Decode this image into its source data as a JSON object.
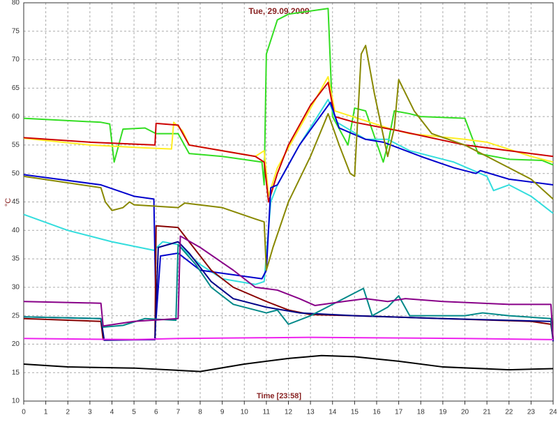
{
  "chart_data": {
    "type": "line",
    "title": "Tue, 29.09.2009",
    "ylabel": "°C",
    "xlabel": "Time [23:58]",
    "xlim": [
      0,
      24
    ],
    "xticks": [
      0,
      1,
      2,
      3,
      4,
      5,
      6,
      7,
      8,
      9,
      10,
      11,
      12,
      13,
      14,
      15,
      16,
      17,
      18,
      19,
      20,
      21,
      22,
      23,
      24
    ],
    "ylim": [
      10,
      80
    ],
    "yticks": [
      10,
      15,
      20,
      25,
      30,
      35,
      40,
      45,
      50,
      55,
      60,
      65,
      70,
      75,
      80
    ],
    "grid": true,
    "series": [
      {
        "color": "#33dd22",
        "x": [
          0,
          3.5,
          3.9,
          4.1,
          4.5,
          5.5,
          6,
          7,
          7.5,
          9,
          10.8,
          10.9,
          11.0,
          11.5,
          12,
          13.8,
          14,
          14.7,
          15,
          15.5,
          16.3,
          16.5,
          16.8,
          17.5,
          18,
          20,
          20.6,
          22,
          23.5,
          24
        ],
        "values": [
          59.7,
          59,
          58.7,
          52,
          57.8,
          58,
          57,
          57,
          53.5,
          53,
          52,
          48,
          71,
          77,
          78,
          79,
          60,
          55,
          61.5,
          61,
          52,
          55,
          61,
          60.5,
          60,
          59.7,
          53.5,
          52.5,
          52.3,
          51.5
        ]
      },
      {
        "color": "#ffee22",
        "x": [
          0,
          3,
          5.5,
          6.7,
          6.8,
          7.2,
          7.5,
          10.5,
          10.9,
          11.1,
          11.5,
          13.8,
          14.1,
          16.5,
          17.5,
          20,
          21,
          23,
          24
        ],
        "values": [
          56.2,
          55,
          54.5,
          54.3,
          59,
          57.5,
          55,
          53,
          54,
          46,
          51,
          67,
          61,
          58,
          57,
          56,
          55.5,
          53,
          52
        ]
      },
      {
        "color": "#cc0000",
        "x": [
          0,
          3,
          5.95,
          6.0,
          7,
          7.5,
          9,
          10.5,
          10.9,
          11.1,
          11.5,
          12,
          13,
          13.8,
          14.1,
          15,
          17,
          20,
          23,
          24
        ],
        "values": [
          56.3,
          55.5,
          55,
          58.8,
          58.5,
          55,
          54,
          53,
          52,
          45,
          50,
          55,
          62,
          66,
          60,
          59,
          57.5,
          55,
          53.5,
          53
        ]
      },
      {
        "color": "#33dddd",
        "x": [
          0,
          2,
          4,
          5.9,
          6.3,
          7,
          8,
          9,
          10.5,
          10.9,
          11.2,
          11.5,
          12.5,
          13.8,
          14.2,
          15.5,
          16.5,
          17.5,
          19.5,
          21,
          21.3,
          22,
          23,
          24
        ],
        "values": [
          42.8,
          40,
          38,
          36.5,
          38,
          37.5,
          34,
          31.5,
          30.5,
          31,
          45,
          48,
          55,
          63,
          59,
          56,
          56,
          54,
          52,
          49.5,
          47,
          48,
          46,
          43
        ]
      },
      {
        "color": "#0000cc",
        "x": [
          0,
          3.5,
          5,
          5.9,
          6.0,
          6.2,
          7,
          8,
          10.8,
          11,
          11.2,
          11.5,
          12.5,
          13.9,
          14.3,
          15.5,
          16.3,
          18,
          19.5,
          20.5,
          20.7,
          22,
          24
        ],
        "values": [
          49.8,
          48,
          46,
          45.5,
          24.5,
          35.5,
          36,
          33,
          31.5,
          33,
          47.5,
          48,
          55,
          62.5,
          58,
          56,
          55.5,
          53,
          51,
          50,
          50.5,
          49,
          48
        ]
      },
      {
        "color": "#888800",
        "x": [
          0,
          3.5,
          3.7,
          4,
          4.5,
          4.8,
          5,
          7,
          7.3,
          9,
          10.5,
          10.9,
          11.0,
          11.3,
          12,
          13,
          13.8,
          14.3,
          14.8,
          15,
          15.3,
          15.5,
          15.9,
          16.5,
          16.8,
          17,
          17.7,
          18.5,
          20,
          21.5,
          23,
          24
        ],
        "values": [
          49.5,
          47.5,
          45,
          43.5,
          44,
          45,
          44.5,
          44,
          44.8,
          44,
          42,
          41.5,
          33,
          37,
          45,
          53,
          60.5,
          55,
          50,
          49.5,
          71,
          72.5,
          64,
          53,
          58,
          66.5,
          61,
          57,
          55,
          52,
          49,
          45.5
        ]
      },
      {
        "color": "#880000",
        "x": [
          0,
          3.5,
          3.6,
          5.95,
          6.0,
          7,
          7.5,
          8.5,
          9.5,
          11,
          12,
          13,
          15,
          19,
          23,
          23.9,
          24
        ],
        "values": [
          24.5,
          24,
          20.8,
          20.8,
          40.8,
          40.5,
          38,
          33,
          30,
          27.5,
          26,
          25.2,
          25,
          24.5,
          24,
          23.5,
          20.8
        ]
      },
      {
        "color": "#000088",
        "x": [
          0,
          3.5,
          3.65,
          5.95,
          6.1,
          7,
          7.5,
          8.5,
          9.5,
          11,
          12.5,
          15,
          19,
          23.9,
          24
        ],
        "values": [
          24.8,
          24.5,
          20.7,
          20.8,
          37,
          38,
          36,
          31,
          28,
          26.5,
          25.5,
          25,
          24.5,
          24,
          20.5
        ]
      },
      {
        "color": "#008888",
        "x": [
          0,
          3.5,
          3.6,
          4.5,
          5.5,
          6.9,
          7.0,
          7.8,
          8.5,
          9.5,
          11,
          11.5,
          12,
          13,
          14,
          15,
          15.4,
          15.8,
          16.5,
          17,
          17.5,
          20,
          20.8,
          22,
          23.9,
          24
        ],
        "values": [
          24.8,
          24.5,
          23,
          23.3,
          24.5,
          24.2,
          37.5,
          34,
          30,
          27,
          25.5,
          26,
          23.5,
          25,
          27,
          29,
          29.8,
          25,
          26.5,
          28.5,
          25,
          25,
          25.5,
          25,
          24.5,
          21
        ]
      },
      {
        "color": "#880088",
        "x": [
          0,
          3.5,
          3.6,
          5,
          7,
          7.1,
          8,
          9.5,
          10.5,
          11.5,
          12.5,
          13.2,
          14.5,
          15.5,
          16.5,
          17.3,
          19,
          22,
          23.9,
          24
        ],
        "values": [
          27.5,
          27.2,
          23.2,
          24,
          24.5,
          39,
          37,
          33,
          30,
          29.5,
          28,
          26.8,
          27.5,
          28,
          27.5,
          28,
          27.5,
          27,
          27,
          21
        ]
      },
      {
        "color": "#ee22ee",
        "x": [
          0,
          5,
          7,
          13,
          20,
          24
        ],
        "values": [
          21,
          20.8,
          21,
          21.2,
          21,
          20.8
        ]
      },
      {
        "color": "#000000",
        "x": [
          0,
          2,
          5,
          8,
          10,
          12,
          13.5,
          15,
          17,
          19,
          22,
          24
        ],
        "values": [
          16.5,
          16,
          15.8,
          15.2,
          16.5,
          17.5,
          18,
          17.8,
          17,
          16,
          15.5,
          15.7
        ]
      }
    ]
  }
}
